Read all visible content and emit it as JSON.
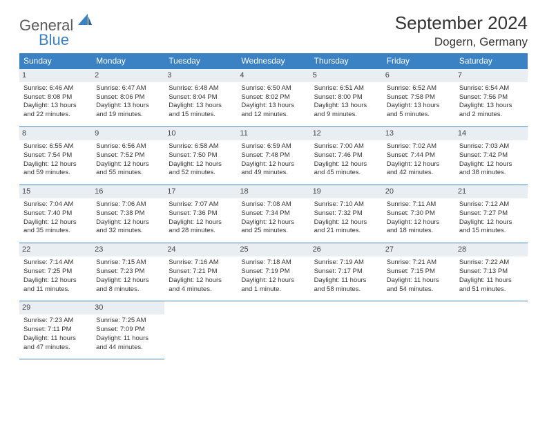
{
  "brand": {
    "word1": "General",
    "word2": "Blue"
  },
  "title": "September 2024",
  "location": "Dogern, Germany",
  "colors": {
    "header_bg": "#3b82c4",
    "header_text": "#ffffff",
    "daynum_bg": "#e9eef2",
    "rule": "#3b82c4",
    "page_bg": "#ffffff",
    "logo_gray": "#5a5a5a",
    "logo_blue": "#3b82c4"
  },
  "layout": {
    "columns": 7,
    "rows": 5,
    "cell_font_size_pt": 7,
    "header_font_size_pt": 9
  },
  "day_headers": [
    "Sunday",
    "Monday",
    "Tuesday",
    "Wednesday",
    "Thursday",
    "Friday",
    "Saturday"
  ],
  "weeks": [
    [
      {
        "n": "1",
        "sr": "Sunrise: 6:46 AM",
        "ss": "Sunset: 8:08 PM",
        "d1": "Daylight: 13 hours",
        "d2": "and 22 minutes."
      },
      {
        "n": "2",
        "sr": "Sunrise: 6:47 AM",
        "ss": "Sunset: 8:06 PM",
        "d1": "Daylight: 13 hours",
        "d2": "and 19 minutes."
      },
      {
        "n": "3",
        "sr": "Sunrise: 6:48 AM",
        "ss": "Sunset: 8:04 PM",
        "d1": "Daylight: 13 hours",
        "d2": "and 15 minutes."
      },
      {
        "n": "4",
        "sr": "Sunrise: 6:50 AM",
        "ss": "Sunset: 8:02 PM",
        "d1": "Daylight: 13 hours",
        "d2": "and 12 minutes."
      },
      {
        "n": "5",
        "sr": "Sunrise: 6:51 AM",
        "ss": "Sunset: 8:00 PM",
        "d1": "Daylight: 13 hours",
        "d2": "and 9 minutes."
      },
      {
        "n": "6",
        "sr": "Sunrise: 6:52 AM",
        "ss": "Sunset: 7:58 PM",
        "d1": "Daylight: 13 hours",
        "d2": "and 5 minutes."
      },
      {
        "n": "7",
        "sr": "Sunrise: 6:54 AM",
        "ss": "Sunset: 7:56 PM",
        "d1": "Daylight: 13 hours",
        "d2": "and 2 minutes."
      }
    ],
    [
      {
        "n": "8",
        "sr": "Sunrise: 6:55 AM",
        "ss": "Sunset: 7:54 PM",
        "d1": "Daylight: 12 hours",
        "d2": "and 59 minutes."
      },
      {
        "n": "9",
        "sr": "Sunrise: 6:56 AM",
        "ss": "Sunset: 7:52 PM",
        "d1": "Daylight: 12 hours",
        "d2": "and 55 minutes."
      },
      {
        "n": "10",
        "sr": "Sunrise: 6:58 AM",
        "ss": "Sunset: 7:50 PM",
        "d1": "Daylight: 12 hours",
        "d2": "and 52 minutes."
      },
      {
        "n": "11",
        "sr": "Sunrise: 6:59 AM",
        "ss": "Sunset: 7:48 PM",
        "d1": "Daylight: 12 hours",
        "d2": "and 49 minutes."
      },
      {
        "n": "12",
        "sr": "Sunrise: 7:00 AM",
        "ss": "Sunset: 7:46 PM",
        "d1": "Daylight: 12 hours",
        "d2": "and 45 minutes."
      },
      {
        "n": "13",
        "sr": "Sunrise: 7:02 AM",
        "ss": "Sunset: 7:44 PM",
        "d1": "Daylight: 12 hours",
        "d2": "and 42 minutes."
      },
      {
        "n": "14",
        "sr": "Sunrise: 7:03 AM",
        "ss": "Sunset: 7:42 PM",
        "d1": "Daylight: 12 hours",
        "d2": "and 38 minutes."
      }
    ],
    [
      {
        "n": "15",
        "sr": "Sunrise: 7:04 AM",
        "ss": "Sunset: 7:40 PM",
        "d1": "Daylight: 12 hours",
        "d2": "and 35 minutes."
      },
      {
        "n": "16",
        "sr": "Sunrise: 7:06 AM",
        "ss": "Sunset: 7:38 PM",
        "d1": "Daylight: 12 hours",
        "d2": "and 32 minutes."
      },
      {
        "n": "17",
        "sr": "Sunrise: 7:07 AM",
        "ss": "Sunset: 7:36 PM",
        "d1": "Daylight: 12 hours",
        "d2": "and 28 minutes."
      },
      {
        "n": "18",
        "sr": "Sunrise: 7:08 AM",
        "ss": "Sunset: 7:34 PM",
        "d1": "Daylight: 12 hours",
        "d2": "and 25 minutes."
      },
      {
        "n": "19",
        "sr": "Sunrise: 7:10 AM",
        "ss": "Sunset: 7:32 PM",
        "d1": "Daylight: 12 hours",
        "d2": "and 21 minutes."
      },
      {
        "n": "20",
        "sr": "Sunrise: 7:11 AM",
        "ss": "Sunset: 7:30 PM",
        "d1": "Daylight: 12 hours",
        "d2": "and 18 minutes."
      },
      {
        "n": "21",
        "sr": "Sunrise: 7:12 AM",
        "ss": "Sunset: 7:27 PM",
        "d1": "Daylight: 12 hours",
        "d2": "and 15 minutes."
      }
    ],
    [
      {
        "n": "22",
        "sr": "Sunrise: 7:14 AM",
        "ss": "Sunset: 7:25 PM",
        "d1": "Daylight: 12 hours",
        "d2": "and 11 minutes."
      },
      {
        "n": "23",
        "sr": "Sunrise: 7:15 AM",
        "ss": "Sunset: 7:23 PM",
        "d1": "Daylight: 12 hours",
        "d2": "and 8 minutes."
      },
      {
        "n": "24",
        "sr": "Sunrise: 7:16 AM",
        "ss": "Sunset: 7:21 PM",
        "d1": "Daylight: 12 hours",
        "d2": "and 4 minutes."
      },
      {
        "n": "25",
        "sr": "Sunrise: 7:18 AM",
        "ss": "Sunset: 7:19 PM",
        "d1": "Daylight: 12 hours",
        "d2": "and 1 minute."
      },
      {
        "n": "26",
        "sr": "Sunrise: 7:19 AM",
        "ss": "Sunset: 7:17 PM",
        "d1": "Daylight: 11 hours",
        "d2": "and 58 minutes."
      },
      {
        "n": "27",
        "sr": "Sunrise: 7:21 AM",
        "ss": "Sunset: 7:15 PM",
        "d1": "Daylight: 11 hours",
        "d2": "and 54 minutes."
      },
      {
        "n": "28",
        "sr": "Sunrise: 7:22 AM",
        "ss": "Sunset: 7:13 PM",
        "d1": "Daylight: 11 hours",
        "d2": "and 51 minutes."
      }
    ],
    [
      {
        "n": "29",
        "sr": "Sunrise: 7:23 AM",
        "ss": "Sunset: 7:11 PM",
        "d1": "Daylight: 11 hours",
        "d2": "and 47 minutes."
      },
      {
        "n": "30",
        "sr": "Sunrise: 7:25 AM",
        "ss": "Sunset: 7:09 PM",
        "d1": "Daylight: 11 hours",
        "d2": "and 44 minutes."
      },
      null,
      null,
      null,
      null,
      null
    ]
  ]
}
